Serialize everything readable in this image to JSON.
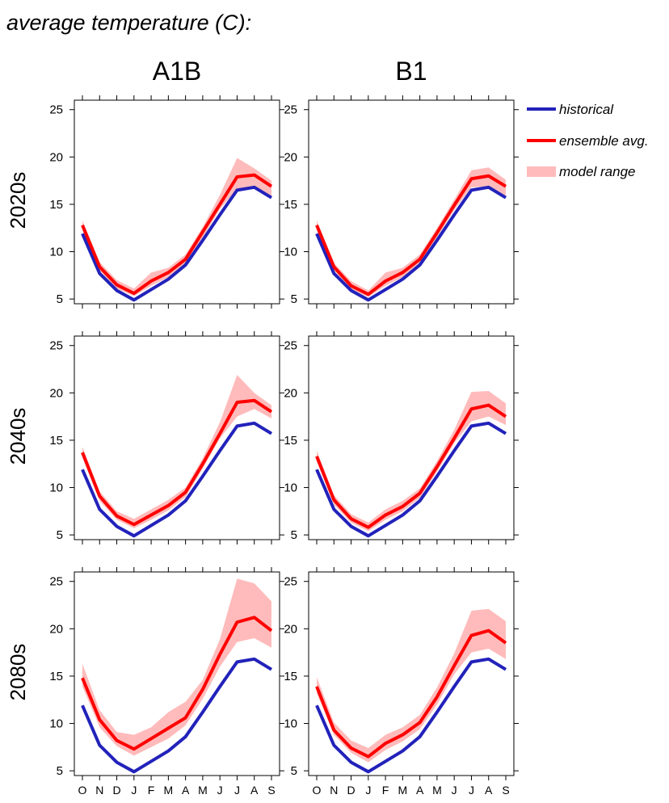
{
  "title": "average temperature (C):",
  "columns": [
    "A1B",
    "B1"
  ],
  "rows": [
    "2020s",
    "2040s",
    "2080s"
  ],
  "legend": {
    "placement": "top-right",
    "entries": [
      {
        "label": "historical",
        "color": "#2222bb",
        "kind": "line"
      },
      {
        "label": "ensemble avg.",
        "color": "#ff0000",
        "kind": "line"
      },
      {
        "label": "model range",
        "color": "#ffbbbb",
        "kind": "band"
      }
    ]
  },
  "chart_data": {
    "type": "line",
    "title": "average temperature (C):",
    "months": [
      "O",
      "N",
      "D",
      "J",
      "F",
      "M",
      "A",
      "M",
      "J",
      "J",
      "A",
      "S"
    ],
    "ylim": [
      4.5,
      26
    ],
    "yticks": [
      5,
      10,
      15,
      20,
      25
    ],
    "grid": false,
    "historical": [
      11.9,
      7.7,
      5.9,
      4.9,
      6.0,
      7.1,
      8.6,
      11.2,
      13.9,
      16.5,
      16.8,
      15.7
    ],
    "panels": [
      {
        "scenario": "A1B",
        "period": "2020s",
        "ensemble_avg": [
          12.8,
          8.4,
          6.5,
          5.6,
          6.9,
          7.8,
          9.2,
          12.1,
          15.0,
          17.9,
          18.1,
          16.9
        ],
        "range_low": [
          12.3,
          8.0,
          6.1,
          5.3,
          6.4,
          7.3,
          8.7,
          11.5,
          14.5,
          16.6,
          16.9,
          15.9
        ],
        "range_high": [
          13.3,
          8.9,
          7.0,
          6.1,
          7.8,
          8.3,
          9.7,
          12.6,
          16.0,
          19.9,
          18.8,
          17.5
        ]
      },
      {
        "scenario": "B1",
        "period": "2020s",
        "ensemble_avg": [
          12.8,
          8.4,
          6.4,
          5.5,
          6.9,
          7.8,
          9.2,
          12.0,
          14.9,
          17.7,
          18.0,
          16.9
        ],
        "range_low": [
          12.3,
          8.0,
          6.0,
          5.2,
          6.4,
          7.3,
          8.7,
          11.5,
          14.4,
          16.8,
          16.9,
          15.9
        ],
        "range_high": [
          13.3,
          8.8,
          6.9,
          5.9,
          7.8,
          8.3,
          9.7,
          12.5,
          15.5,
          18.6,
          18.9,
          17.6
        ]
      },
      {
        "scenario": "A1B",
        "period": "2040s",
        "ensemble_avg": [
          13.7,
          9.1,
          7.0,
          6.1,
          7.1,
          8.1,
          9.5,
          12.5,
          15.7,
          19.0,
          19.2,
          18.0
        ],
        "range_low": [
          13.2,
          8.6,
          6.6,
          5.7,
          6.6,
          7.6,
          9.0,
          12.0,
          15.2,
          17.5,
          18.3,
          17.3
        ],
        "range_high": [
          14.3,
          9.6,
          7.5,
          6.7,
          7.7,
          8.7,
          10.0,
          13.1,
          16.9,
          21.9,
          20.0,
          18.7
        ]
      },
      {
        "scenario": "B1",
        "period": "2040s",
        "ensemble_avg": [
          13.3,
          8.7,
          6.7,
          5.8,
          7.1,
          8.0,
          9.4,
          12.2,
          15.2,
          18.3,
          18.7,
          17.5
        ],
        "range_low": [
          12.8,
          8.2,
          6.3,
          5.4,
          6.6,
          7.5,
          8.9,
          11.7,
          14.7,
          17.0,
          17.5,
          16.6
        ],
        "range_high": [
          13.9,
          9.2,
          7.2,
          6.3,
          7.7,
          8.6,
          9.9,
          12.8,
          16.1,
          20.1,
          20.2,
          18.9
        ]
      },
      {
        "scenario": "A1B",
        "period": "2080s",
        "ensemble_avg": [
          14.8,
          10.4,
          8.2,
          7.3,
          8.4,
          9.5,
          10.6,
          13.6,
          17.3,
          20.7,
          21.2,
          19.8
        ],
        "range_low": [
          13.9,
          9.6,
          7.6,
          6.6,
          7.5,
          8.4,
          9.8,
          12.6,
          16.0,
          18.6,
          19.0,
          18.0
        ],
        "range_high": [
          16.3,
          11.4,
          9.1,
          8.8,
          9.6,
          11.2,
          12.3,
          14.6,
          18.9,
          25.3,
          24.8,
          22.9
        ]
      },
      {
        "scenario": "B1",
        "period": "2080s",
        "ensemble_avg": [
          13.9,
          9.3,
          7.4,
          6.5,
          7.9,
          8.8,
          10.1,
          12.8,
          16.1,
          19.3,
          19.8,
          18.5
        ],
        "range_low": [
          13.2,
          8.8,
          6.9,
          5.9,
          7.2,
          8.1,
          9.4,
          12.0,
          15.2,
          17.5,
          17.9,
          16.8
        ],
        "range_high": [
          14.9,
          10.1,
          8.2,
          7.4,
          8.8,
          9.6,
          10.9,
          13.8,
          17.4,
          21.9,
          22.1,
          20.8
        ]
      }
    ]
  }
}
